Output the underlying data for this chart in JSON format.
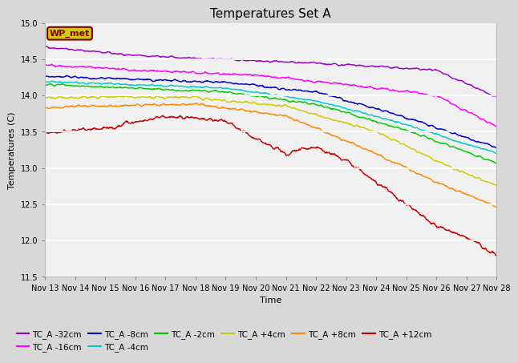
{
  "title": "Temperatures Set A",
  "xlabel": "Time",
  "ylabel": "Temperatures (C)",
  "ylim": [
    11.5,
    15.0
  ],
  "x_tick_labels": [
    "Nov 13",
    "Nov 14",
    "Nov 15",
    "Nov 16",
    "Nov 17",
    "Nov 18",
    "Nov 19",
    "Nov 20",
    "Nov 21",
    "Nov 22",
    "Nov 23",
    "Nov 24",
    "Nov 25",
    "Nov 26",
    "Nov 27",
    "Nov 28"
  ],
  "series": [
    {
      "label": "TC_A -32cm",
      "color": "#9900cc"
    },
    {
      "label": "TC_A -16cm",
      "color": "#ff00ff"
    },
    {
      "label": "TC_A -8cm",
      "color": "#0000cc"
    },
    {
      "label": "TC_A -4cm",
      "color": "#00cccc"
    },
    {
      "label": "TC_A -2cm",
      "color": "#00cc00"
    },
    {
      "label": "TC_A +4cm",
      "color": "#cccc00"
    },
    {
      "label": "TC_A +8cm",
      "color": "#ff8800"
    },
    {
      "label": "TC_A +12cm",
      "color": "#cc0000"
    }
  ],
  "wp_met_box_facecolor": "#cccc00",
  "wp_met_text_color": "#800000",
  "wp_met_edge_color": "#800000",
  "fig_facecolor": "#d8d8d8",
  "plot_facecolor": "#f0f0f0",
  "grid_color": "#ffffff",
  "y_ticks": [
    11.5,
    12.0,
    12.5,
    13.0,
    13.5,
    14.0,
    14.5,
    15.0
  ],
  "linewidth": 1.0,
  "title_fontsize": 11,
  "label_fontsize": 8,
  "tick_fontsize": 7,
  "legend_fontsize": 7.5
}
